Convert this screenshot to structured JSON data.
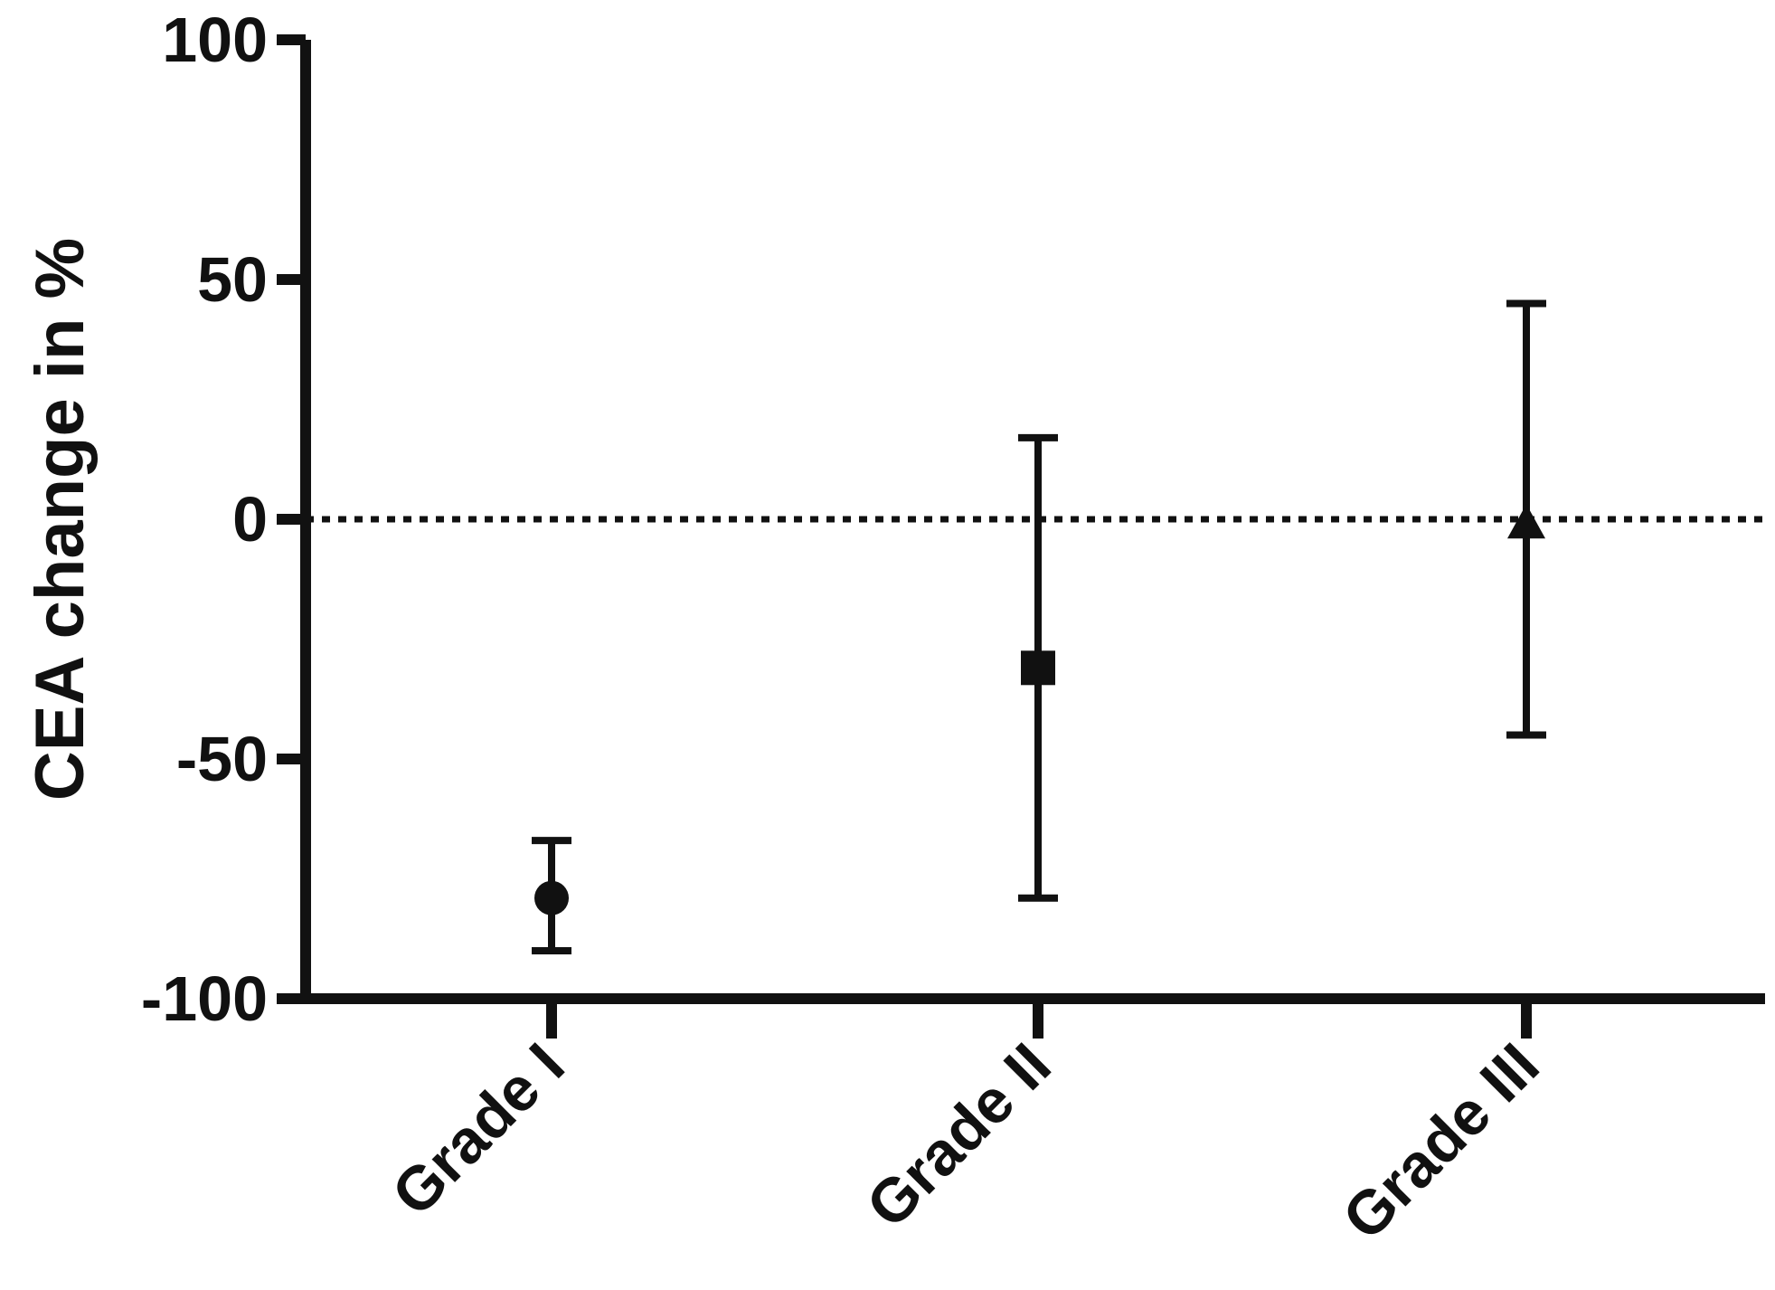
{
  "chart_data": {
    "type": "scatter",
    "title": "",
    "xlabel": "",
    "ylabel": "CEA change in %",
    "ylim": [
      -100,
      100
    ],
    "yticks": [
      100,
      50,
      0,
      -50,
      -100
    ],
    "ytick_labels": [
      "100",
      "50",
      "0",
      "-50",
      "-100"
    ],
    "categories": [
      "Grade I",
      "Grade II",
      "Grade III"
    ],
    "points": [
      {
        "category": "Grade I",
        "value": -79,
        "error_low": -90,
        "error_high": -67,
        "marker": "circle"
      },
      {
        "category": "Grade II",
        "value": -31,
        "error_low": -79,
        "error_high": 17,
        "marker": "square"
      },
      {
        "category": "Grade III",
        "value": -1,
        "error_low": -45,
        "error_high": 45,
        "marker": "triangle"
      }
    ],
    "reference_line": {
      "value": 0,
      "style": "dotted"
    },
    "grid": false,
    "legend": "none",
    "colors": {
      "marks": "#111111",
      "background": "#ffffff"
    }
  }
}
